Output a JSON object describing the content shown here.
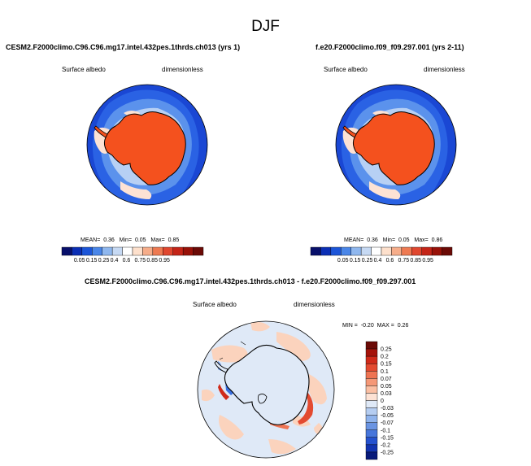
{
  "figure": {
    "season": "DJF"
  },
  "panels": [
    {
      "title": "CESM2.F2000climo.C96.C96.mg17.intel.432pes.1thrds.ch013 (yrs 1)",
      "variable": "Surface albedo",
      "units": "dimensionless",
      "stats": {
        "mean_label": "MEAN=",
        "mean": "0.36",
        "min_label": "Min=",
        "min": "0.05",
        "max_label": "Max=",
        "max": "0.85"
      }
    },
    {
      "title": "f.e20.F2000climo.f09_f09.297.001 (yrs 2-11)",
      "variable": "Surface albedo",
      "units": "dimensionless",
      "stats": {
        "mean_label": "MEAN=",
        "mean": "0.36",
        "min_label": "Min=",
        "min": "0.05",
        "max_label": "Max=",
        "max": "0.86"
      }
    },
    {
      "title": "CESM2.F2000climo.C96.C96.mg17.intel.432pes.1thrds.ch013 - f.e20.F2000climo.f09_f09.297.001",
      "variable": "Surface albedo",
      "units": "dimensionless",
      "stats": {
        "min_label": "MIN =",
        "min": "-0.20",
        "max_label": "MAX =",
        "max": "0.26"
      }
    }
  ],
  "colorbars": {
    "absolute": {
      "labels": [
        "0.05",
        "0.15",
        "0.25",
        "0.4",
        "0.6",
        "0.75",
        "0.85",
        "0.95"
      ],
      "colors": [
        "#08106b",
        "#0b2fb5",
        "#1c55d8",
        "#4a86e8",
        "#8fb7ee",
        "#c6d9f3",
        "#ffffff",
        "#fde0cc",
        "#f6ad8a",
        "#ee7a52",
        "#e0472f",
        "#c42417",
        "#981108",
        "#6b0a06"
      ]
    },
    "difference": {
      "labels": [
        "0.25",
        "0.2",
        "0.15",
        "0.1",
        "0.07",
        "0.05",
        "0.03",
        "0",
        "-0.03",
        "-0.05",
        "-0.07",
        "-0.1",
        "-0.15",
        "-0.2",
        "-0.25"
      ],
      "colors": [
        "#6b0a06",
        "#a5130b",
        "#d02a1a",
        "#e34a30",
        "#ee7453",
        "#f59877",
        "#fbbfa3",
        "#fde2d4",
        "#dfe9f7",
        "#b5cdf1",
        "#8fb3ec",
        "#6a94e2",
        "#4776db",
        "#2552cf",
        "#1234b0",
        "#081a7a"
      ]
    }
  },
  "map_colors": {
    "ocean_blue": "#1a47d4",
    "ice_high": "#f4511e",
    "sea_ice_pale": "#fdd7c3",
    "diff_background": "#dfe9f7",
    "diff_positive": "#fbd3bd",
    "diff_negative": "#3a6fe0",
    "coastline": "#000000"
  }
}
